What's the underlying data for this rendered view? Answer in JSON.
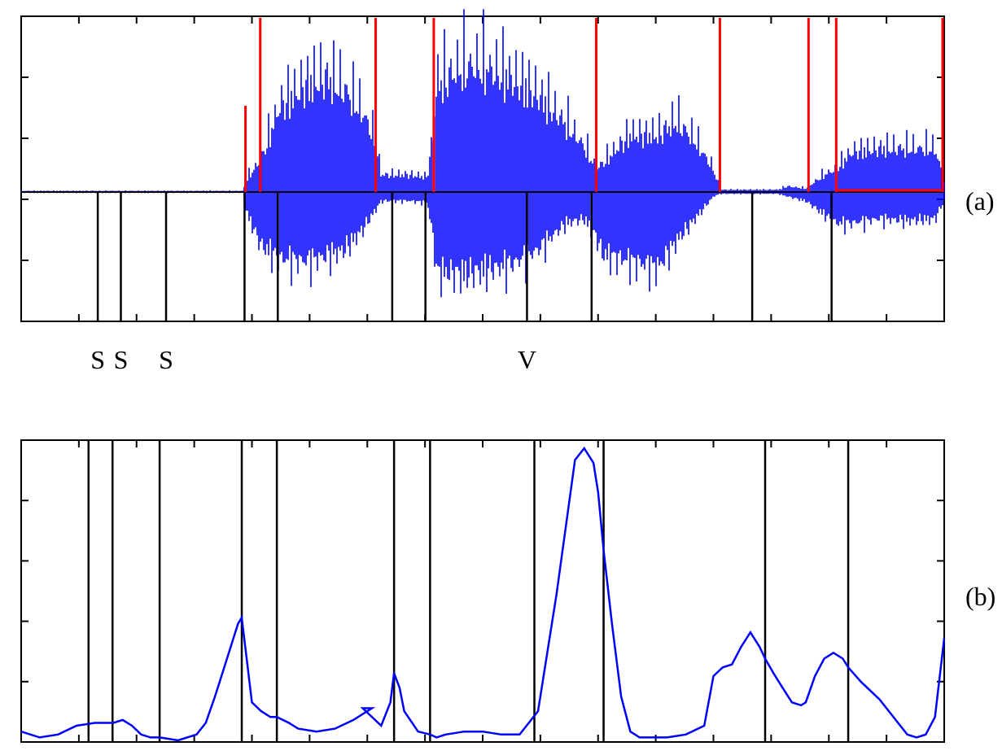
{
  "colors": {
    "waveform": "#0000ff",
    "boundary": "#ff0000",
    "marker": "#000000",
    "curve": "#0000ff",
    "frame": "#000000"
  },
  "chart_data": [
    {
      "id": "a",
      "type": "line",
      "panel_label": "(a)",
      "title": "",
      "xlabel": "",
      "ylabel": "",
      "xlim": [
        0,
        1
      ],
      "ylim": [
        -1,
        1
      ],
      "grid": false,
      "marker_annotations": [
        "S",
        "S",
        "S",
        "V"
      ],
      "markers_x": [
        0.083,
        0.108,
        0.157,
        0.242,
        0.278,
        0.402,
        0.438,
        0.548,
        0.618,
        0.792,
        0.878
      ],
      "segment_boundaries_x": [
        0.243,
        0.259,
        0.384,
        0.447,
        0.623,
        0.757,
        0.853,
        0.883,
        1.0
      ],
      "series": [
        {
          "kind": "envelope",
          "x": [
            0.0,
            0.24,
            0.245,
            0.26,
            0.28,
            0.31,
            0.33,
            0.35,
            0.37,
            0.384,
            0.39,
            0.42,
            0.44,
            0.447,
            0.45,
            0.48,
            0.5,
            0.53,
            0.56,
            0.59,
            0.61,
            0.623,
            0.63,
            0.66,
            0.69,
            0.71,
            0.73,
            0.75,
            0.757,
            0.77,
            0.82,
            0.83,
            0.85,
            0.87,
            0.883,
            0.9,
            0.93,
            0.96,
            0.99,
            1.0
          ],
          "upper": [
            0.01,
            0.01,
            0.12,
            0.28,
            0.75,
            0.95,
            1.0,
            0.9,
            0.7,
            0.45,
            0.15,
            0.15,
            0.13,
            0.55,
            0.95,
            1.1,
            1.1,
            1.0,
            0.85,
            0.6,
            0.4,
            0.2,
            0.25,
            0.5,
            0.5,
            0.62,
            0.45,
            0.2,
            0.02,
            0.02,
            0.02,
            0.05,
            0.03,
            0.15,
            0.2,
            0.35,
            0.38,
            0.38,
            0.38,
            0.1
          ],
          "lower": [
            -0.01,
            -0.01,
            -0.25,
            -0.6,
            -0.75,
            -0.78,
            -0.72,
            -0.65,
            -0.42,
            -0.2,
            -0.1,
            -0.1,
            -0.12,
            -0.55,
            -0.9,
            -0.92,
            -0.88,
            -0.82,
            -0.65,
            -0.35,
            -0.3,
            -0.5,
            -0.7,
            -0.78,
            -0.85,
            -0.55,
            -0.3,
            -0.05,
            -0.02,
            -0.02,
            -0.02,
            -0.05,
            -0.1,
            -0.25,
            -0.35,
            -0.35,
            -0.3,
            -0.32,
            -0.3,
            -0.1
          ]
        }
      ]
    },
    {
      "id": "b",
      "type": "line",
      "panel_label": "(b)",
      "title": "",
      "xlabel": "",
      "ylabel": "",
      "xlim": [
        0,
        1
      ],
      "ylim": [
        0,
        1
      ],
      "grid": false,
      "markers_x": [
        0.073,
        0.099,
        0.15,
        0.239,
        0.277,
        0.404,
        0.443,
        0.556,
        0.631,
        0.806,
        0.896
      ],
      "series": [
        {
          "name": "",
          "x": [
            0.0,
            0.02,
            0.04,
            0.06,
            0.08,
            0.1,
            0.11,
            0.12,
            0.13,
            0.14,
            0.15,
            0.17,
            0.19,
            0.2,
            0.21,
            0.22,
            0.23,
            0.235,
            0.239,
            0.25,
            0.26,
            0.27,
            0.277,
            0.29,
            0.3,
            0.32,
            0.34,
            0.36,
            0.38,
            0.37,
            0.39,
            0.4,
            0.404,
            0.41,
            0.415,
            0.43,
            0.443,
            0.45,
            0.46,
            0.48,
            0.5,
            0.52,
            0.54,
            0.56,
            0.58,
            0.6,
            0.61,
            0.62,
            0.625,
            0.631,
            0.64,
            0.65,
            0.66,
            0.67,
            0.68,
            0.7,
            0.72,
            0.74,
            0.75,
            0.76,
            0.77,
            0.78,
            0.79,
            0.8,
            0.806,
            0.815,
            0.825,
            0.835,
            0.845,
            0.85,
            0.86,
            0.87,
            0.88,
            0.89,
            0.896,
            0.91,
            0.93,
            0.95,
            0.96,
            0.97,
            0.98,
            0.99,
            1.0
          ],
          "y": [
            0.03,
            0.01,
            0.02,
            0.05,
            0.06,
            0.06,
            0.07,
            0.05,
            0.02,
            0.01,
            0.01,
            0.0,
            0.02,
            0.06,
            0.15,
            0.25,
            0.35,
            0.4,
            0.42,
            0.13,
            0.1,
            0.08,
            0.08,
            0.06,
            0.04,
            0.03,
            0.04,
            0.07,
            0.11,
            0.11,
            0.05,
            0.13,
            0.23,
            0.18,
            0.1,
            0.03,
            0.02,
            0.01,
            0.02,
            0.03,
            0.03,
            0.02,
            0.02,
            0.1,
            0.5,
            0.96,
            1.0,
            0.95,
            0.85,
            0.65,
            0.4,
            0.15,
            0.03,
            0.01,
            0.01,
            0.01,
            0.02,
            0.05,
            0.22,
            0.25,
            0.26,
            0.32,
            0.37,
            0.32,
            0.28,
            0.23,
            0.18,
            0.13,
            0.12,
            0.13,
            0.22,
            0.28,
            0.3,
            0.28,
            0.25,
            0.2,
            0.14,
            0.06,
            0.02,
            0.01,
            0.02,
            0.08,
            0.35
          ]
        }
      ]
    }
  ]
}
